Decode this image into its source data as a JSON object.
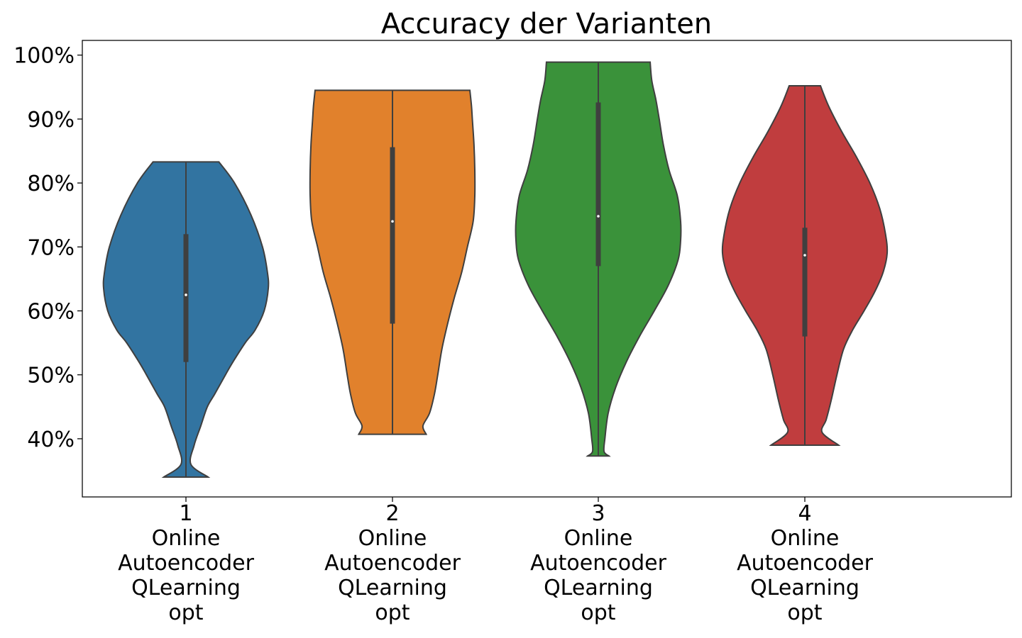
{
  "chart_data": {
    "type": "violin",
    "title": "Accuracy der Varianten",
    "xlabel": "",
    "ylabel": "",
    "y_unit": "%",
    "ylim": [
      30.9,
      102.3
    ],
    "yticks": [
      40,
      50,
      60,
      70,
      80,
      90,
      100
    ],
    "ytick_labels": [
      "40%",
      "50%",
      "60%",
      "70%",
      "80%",
      "90%",
      "100%"
    ],
    "grid": false,
    "legend": "none",
    "categories": [
      {
        "index": "1",
        "label_lines": [
          "Online",
          "Autoencoder",
          "QLearning",
          "opt"
        ],
        "color": "#3274a1",
        "min": 34.0,
        "q1": 52.0,
        "median": 62.5,
        "q3": 72.0,
        "max": 83.3,
        "profile": [
          [
            83.3,
            0.4
          ],
          [
            80.0,
            0.59
          ],
          [
            75.0,
            0.79
          ],
          [
            70.0,
            0.93
          ],
          [
            66.0,
            0.99
          ],
          [
            63.5,
            1.0
          ],
          [
            60.0,
            0.95
          ],
          [
            57.0,
            0.84
          ],
          [
            55.0,
            0.72
          ],
          [
            52.0,
            0.57
          ],
          [
            50.0,
            0.48
          ],
          [
            47.0,
            0.35
          ],
          [
            45.0,
            0.26
          ],
          [
            42.0,
            0.18
          ],
          [
            39.0,
            0.1
          ],
          [
            36.0,
            0.06
          ],
          [
            34.0,
            0.27
          ]
        ]
      },
      {
        "index": "2",
        "label_lines": [
          "Online",
          "Autoencoder",
          "QLearning",
          "opt"
        ],
        "color": "#e1812c",
        "min": 40.7,
        "q1": 58.0,
        "median": 74.0,
        "q3": 85.6,
        "max": 94.5,
        "profile": [
          [
            94.5,
            0.94
          ],
          [
            92.0,
            0.96
          ],
          [
            90.0,
            0.97
          ],
          [
            86.0,
            0.99
          ],
          [
            82.0,
            1.0
          ],
          [
            78.0,
            1.0
          ],
          [
            74.0,
            0.98
          ],
          [
            70.0,
            0.91
          ],
          [
            66.0,
            0.84
          ],
          [
            62.0,
            0.75
          ],
          [
            58.0,
            0.67
          ],
          [
            54.0,
            0.6
          ],
          [
            50.0,
            0.55
          ],
          [
            47.0,
            0.51
          ],
          [
            44.0,
            0.45
          ],
          [
            42.0,
            0.37
          ],
          [
            40.7,
            0.41
          ]
        ]
      },
      {
        "index": "3",
        "label_lines": [
          "Online",
          "Autoencoder",
          "QLearning",
          "opt"
        ],
        "color": "#3a923a",
        "min": 37.3,
        "q1": 67.0,
        "median": 74.8,
        "q3": 92.6,
        "max": 98.9,
        "profile": [
          [
            98.9,
            0.63
          ],
          [
            96.0,
            0.65
          ],
          [
            93.0,
            0.7
          ],
          [
            90.0,
            0.74
          ],
          [
            86.0,
            0.79
          ],
          [
            82.0,
            0.86
          ],
          [
            78.0,
            0.96
          ],
          [
            74.0,
            1.0
          ],
          [
            71.0,
            1.0
          ],
          [
            68.0,
            0.97
          ],
          [
            64.0,
            0.85
          ],
          [
            60.0,
            0.68
          ],
          [
            56.0,
            0.5
          ],
          [
            52.0,
            0.34
          ],
          [
            48.0,
            0.21
          ],
          [
            44.0,
            0.12
          ],
          [
            40.0,
            0.08
          ],
          [
            38.0,
            0.07
          ],
          [
            37.3,
            0.13
          ]
        ]
      },
      {
        "index": "4",
        "label_lines": [
          "Online",
          "Autoencoder",
          "QLearning",
          "opt"
        ],
        "color": "#c03d3e",
        "min": 39.0,
        "q1": 56.0,
        "median": 68.7,
        "q3": 73.0,
        "max": 95.2,
        "profile": [
          [
            95.2,
            0.19
          ],
          [
            92.0,
            0.29
          ],
          [
            88.0,
            0.45
          ],
          [
            84.0,
            0.63
          ],
          [
            80.0,
            0.79
          ],
          [
            76.0,
            0.91
          ],
          [
            72.0,
            0.98
          ],
          [
            69.0,
            1.0
          ],
          [
            66.0,
            0.95
          ],
          [
            63.0,
            0.85
          ],
          [
            60.0,
            0.72
          ],
          [
            57.0,
            0.58
          ],
          [
            54.0,
            0.47
          ],
          [
            50.0,
            0.39
          ],
          [
            46.0,
            0.32
          ],
          [
            43.0,
            0.26
          ],
          [
            41.0,
            0.21
          ],
          [
            39.0,
            0.41
          ]
        ]
      }
    ]
  }
}
